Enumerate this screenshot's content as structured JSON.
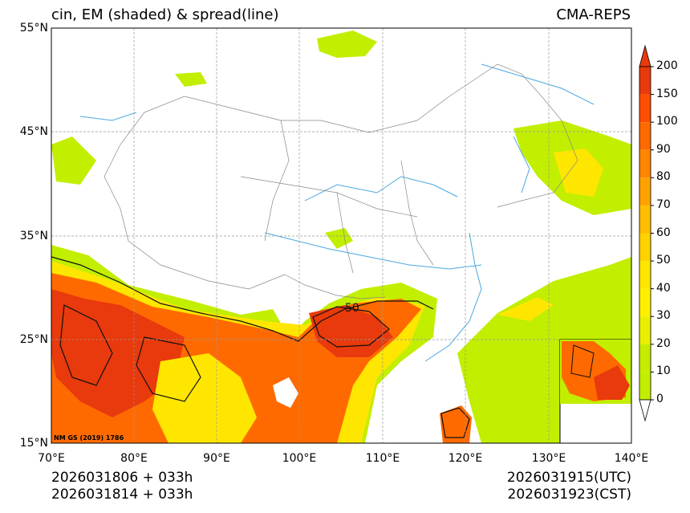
{
  "header": {
    "title_left": "cin, EM (shaded) & spread(line)",
    "title_right": "CMA-REPS"
  },
  "axes": {
    "lat_labels": [
      "55°N",
      "45°N",
      "35°N",
      "25°N",
      "15°N"
    ],
    "lon_labels": [
      "70°E",
      "80°E",
      "90°E",
      "100°E",
      "110°E",
      "120°E",
      "130°E",
      "140°E"
    ]
  },
  "colorbar": {
    "labels": [
      "200",
      "150",
      "100",
      "90",
      "80",
      "70",
      "60",
      "50",
      "40",
      "30",
      "20",
      "10",
      "0"
    ],
    "colors": [
      "#e83a0c",
      "#ff4e00",
      "#ff6a00",
      "#ff8600",
      "#ffa200",
      "#ffbe00",
      "#ffd200",
      "#ffe600",
      "#fff000",
      "#e8f000",
      "#c8ec00",
      "#c2ee00"
    ]
  },
  "map": {
    "contour_label": "50",
    "credit": "NM GS (2019) 1786",
    "colors": {
      "land_low": "#c2ee00",
      "land_mid": "#ffe600",
      "land_high": "#ff6a00",
      "land_max": "#e83a0c",
      "river": "#4aa8e0",
      "border": "#888888"
    }
  },
  "footer": {
    "init_left_1": "2026031806  +  033h",
    "init_left_2": "2026031814  +  033h",
    "valid_right_1": "2026031915(UTC)",
    "valid_right_2": "2026031923(CST)"
  }
}
